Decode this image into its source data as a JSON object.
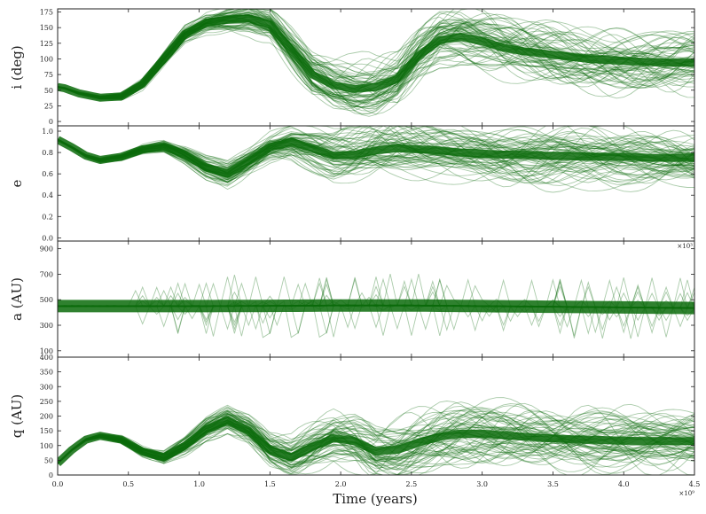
{
  "chart_data": {
    "type": "line",
    "shared_x": {
      "label": "Time (years)",
      "range": [
        0,
        4.5
      ],
      "ticks": [
        "0.0",
        "0.5",
        "1.0",
        "1.5",
        "2.0",
        "2.5",
        "3.0",
        "3.5",
        "4.0",
        "4.5"
      ],
      "tick_values": [
        0,
        0.5,
        1.0,
        1.5,
        2.0,
        2.5,
        3.0,
        3.5,
        4.0,
        4.5
      ],
      "multiplier": "×10⁹"
    },
    "line_color": "#0b6b0b",
    "panels": [
      {
        "id": "inc",
        "ylabel": "i (deg)",
        "ylim": [
          -7,
          180
        ],
        "yticks": [
          "0",
          "25",
          "50",
          "75",
          "100",
          "125",
          "150",
          "175"
        ],
        "ytick_values": [
          0,
          25,
          50,
          75,
          100,
          125,
          150,
          175
        ],
        "multiplier": "",
        "median": {
          "x": [
            0,
            0.05,
            0.15,
            0.3,
            0.45,
            0.6,
            0.75,
            0.9,
            1.05,
            1.2,
            1.35,
            1.5,
            1.65,
            1.8,
            1.95,
            2.1,
            2.25,
            2.4,
            2.55,
            2.7,
            2.85,
            3.0,
            3.15,
            3.3,
            3.45,
            3.6,
            3.75,
            3.9,
            4.05,
            4.2,
            4.35,
            4.5
          ],
          "y": [
            55,
            53,
            45,
            38,
            40,
            60,
            100,
            140,
            158,
            163,
            165,
            155,
            115,
            75,
            58,
            52,
            55,
            68,
            105,
            130,
            135,
            128,
            118,
            112,
            108,
            104,
            100,
            98,
            96,
            95,
            94,
            94
          ]
        }
      },
      {
        "id": "ecc",
        "ylabel": "e",
        "ylim": [
          -0.03,
          1.05
        ],
        "yticks": [
          "0.0",
          "0.2",
          "0.4",
          "0.6",
          "0.8",
          "1.0"
        ],
        "ytick_values": [
          0,
          0.2,
          0.4,
          0.6,
          0.8,
          1.0
        ],
        "multiplier": "",
        "median": {
          "x": [
            0,
            0.1,
            0.2,
            0.3,
            0.45,
            0.6,
            0.75,
            0.9,
            1.05,
            1.2,
            1.35,
            1.5,
            1.65,
            1.8,
            1.95,
            2.1,
            2.25,
            2.4,
            2.55,
            2.7,
            2.85,
            3.0,
            3.15,
            3.3,
            3.45,
            3.6,
            3.75,
            3.9,
            4.05,
            4.2,
            4.35,
            4.5
          ],
          "y": [
            0.92,
            0.85,
            0.77,
            0.73,
            0.76,
            0.83,
            0.86,
            0.78,
            0.66,
            0.6,
            0.72,
            0.85,
            0.9,
            0.84,
            0.77,
            0.78,
            0.82,
            0.84,
            0.83,
            0.82,
            0.8,
            0.79,
            0.78,
            0.78,
            0.77,
            0.77,
            0.76,
            0.76,
            0.76,
            0.75,
            0.75,
            0.75
          ]
        }
      },
      {
        "id": "sma",
        "ylabel": "a (AU)",
        "ylim": [
          50,
          960
        ],
        "yticks": [
          "100",
          "300",
          "500",
          "700",
          "900"
        ],
        "ytick_values": [
          100,
          300,
          500,
          700,
          900
        ],
        "multiplier": "×10³",
        "median": {
          "x": [
            0,
            0.5,
            1.0,
            1.5,
            2.0,
            2.5,
            3.0,
            3.5,
            4.0,
            4.5
          ],
          "y": [
            450,
            450,
            450,
            452,
            455,
            455,
            450,
            445,
            440,
            435
          ]
        }
      },
      {
        "id": "peri",
        "ylabel": "q (AU)",
        "ylim": [
          0,
          400
        ],
        "yticks": [
          "0",
          "50",
          "100",
          "150",
          "200",
          "250",
          "300",
          "350",
          "400"
        ],
        "ytick_values": [
          0,
          50,
          100,
          150,
          200,
          250,
          300,
          350,
          400
        ],
        "multiplier": "",
        "median": {
          "x": [
            0,
            0.1,
            0.2,
            0.3,
            0.45,
            0.6,
            0.75,
            0.9,
            1.05,
            1.2,
            1.35,
            1.5,
            1.65,
            1.8,
            1.95,
            2.1,
            2.25,
            2.4,
            2.55,
            2.7,
            2.85,
            3.0,
            3.15,
            3.3,
            3.45,
            3.6,
            3.75,
            3.9,
            4.05,
            4.2,
            4.35,
            4.5
          ],
          "y": [
            40,
            85,
            120,
            133,
            120,
            80,
            60,
            100,
            155,
            185,
            150,
            85,
            60,
            95,
            125,
            115,
            80,
            85,
            110,
            130,
            140,
            140,
            135,
            130,
            125,
            122,
            120,
            118,
            116,
            115,
            115,
            115
          ]
        }
      }
    ]
  }
}
